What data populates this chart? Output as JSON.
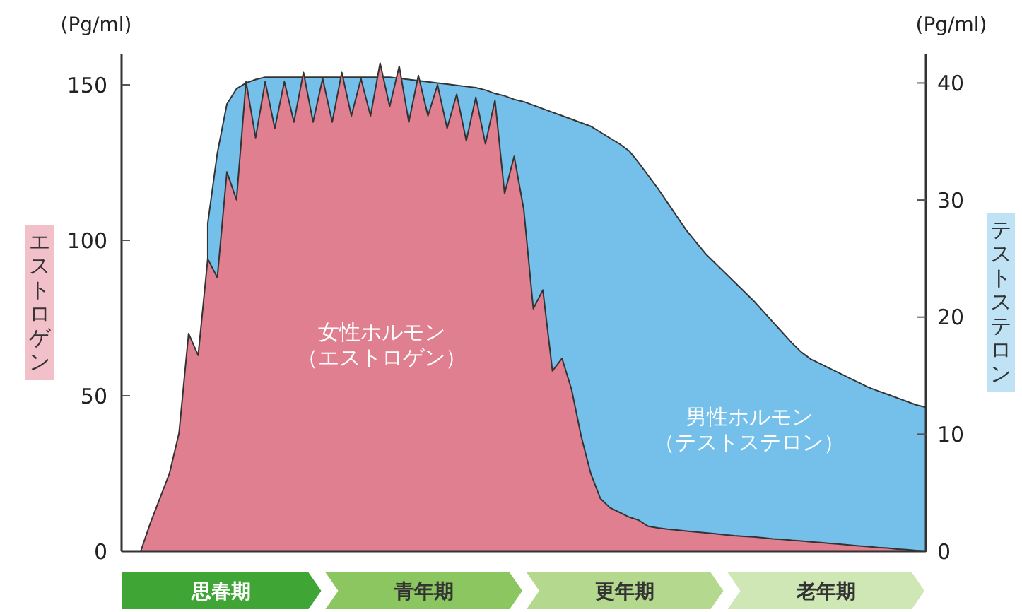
{
  "chart_data": {
    "type": "area",
    "categories": [
      null,
      null,
      null,
      null,
      null,
      null,
      null,
      null,
      null,
      null,
      null,
      null,
      null,
      null,
      null,
      null,
      null,
      null,
      null,
      null,
      null,
      null,
      null,
      null,
      null,
      null,
      null,
      null,
      null,
      null,
      null,
      null,
      null,
      null,
      null,
      null,
      null,
      null,
      null,
      null,
      null,
      null,
      null,
      null,
      null,
      null,
      null,
      null,
      null,
      null,
      null,
      null,
      null,
      null,
      null,
      null,
      null,
      null,
      null,
      null,
      null,
      null,
      null,
      null,
      null,
      null,
      null,
      null,
      null,
      null,
      null,
      null,
      null,
      null,
      null,
      null,
      null,
      null,
      null,
      null,
      null,
      null,
      null,
      null,
      null
    ],
    "ylim": [
      0,
      160
    ],
    "yticks": [
      0,
      50,
      100,
      150
    ],
    "y2lim": [
      0,
      42.5
    ],
    "y2ticks": [
      0,
      10,
      20,
      30,
      40
    ],
    "ylabel": "エストロゲン",
    "y2label": "テストステロン",
    "annotations": [
      "(Pg/ml)",
      "(Pg/ml)",
      "思春期",
      "青年期",
      "更年期",
      "老年期"
    ],
    "series": [
      {
        "name": "男性ホルモン（テストステロン）",
        "color": "#74c0ea",
        "axis": "y2",
        "values": [
          null,
          null,
          null,
          null,
          null,
          null,
          null,
          null,
          null,
          28,
          34,
          38.2,
          39.5,
          40,
          40.3,
          40.5,
          40.5,
          40.5,
          40.5,
          null,
          40.5,
          40.5,
          40.5,
          null,
          40.5,
          40.5,
          40.5,
          null,
          40.5,
          null,
          40.3,
          null,
          40.1,
          40,
          39.9,
          39.8,
          39.7,
          39.6,
          39.4,
          39.1,
          38.9,
          38.6,
          38.4,
          38.1,
          37.8,
          37.5,
          37.2,
          36.9,
          36.6,
          36.3,
          35.8,
          35.3,
          34.8,
          34.2,
          33.2,
          32.1,
          31,
          29.8,
          28.6,
          27.4,
          26.4,
          25.4,
          24.6,
          23.8,
          23,
          22.2,
          21.4,
          20.5,
          19.6,
          18.7,
          17.8,
          17,
          16.4,
          16,
          15.6,
          15.2,
          14.8,
          14.4,
          14,
          13.7,
          13.4,
          13.1,
          12.8,
          12.5,
          12.3
        ]
      },
      {
        "name": "女性ホルモン（エストロゲン）",
        "color": "#e07f8f",
        "values": [
          0,
          0,
          0,
          9,
          17,
          25,
          38,
          70,
          63,
          94,
          88,
          122,
          113,
          151,
          133,
          151,
          136,
          151,
          138,
          154,
          138,
          152,
          138,
          154,
          140,
          152,
          140,
          157,
          143,
          156,
          138,
          153,
          140,
          150,
          136,
          147,
          132,
          146,
          131,
          145,
          115,
          127,
          110,
          78,
          84,
          58,
          62,
          52,
          37,
          25,
          17,
          14,
          12.5,
          11,
          10,
          8,
          7.5,
          7.1,
          6.8,
          6.5,
          6.2,
          5.9,
          5.6,
          5.3,
          5,
          4.8,
          4.6,
          4.3,
          4,
          3.8,
          3.5,
          3.3,
          3,
          2.8,
          2.5,
          2.3,
          2,
          1.7,
          1.5,
          1.2,
          1,
          0.7,
          0.5,
          0.2,
          0
        ]
      }
    ]
  }
}
